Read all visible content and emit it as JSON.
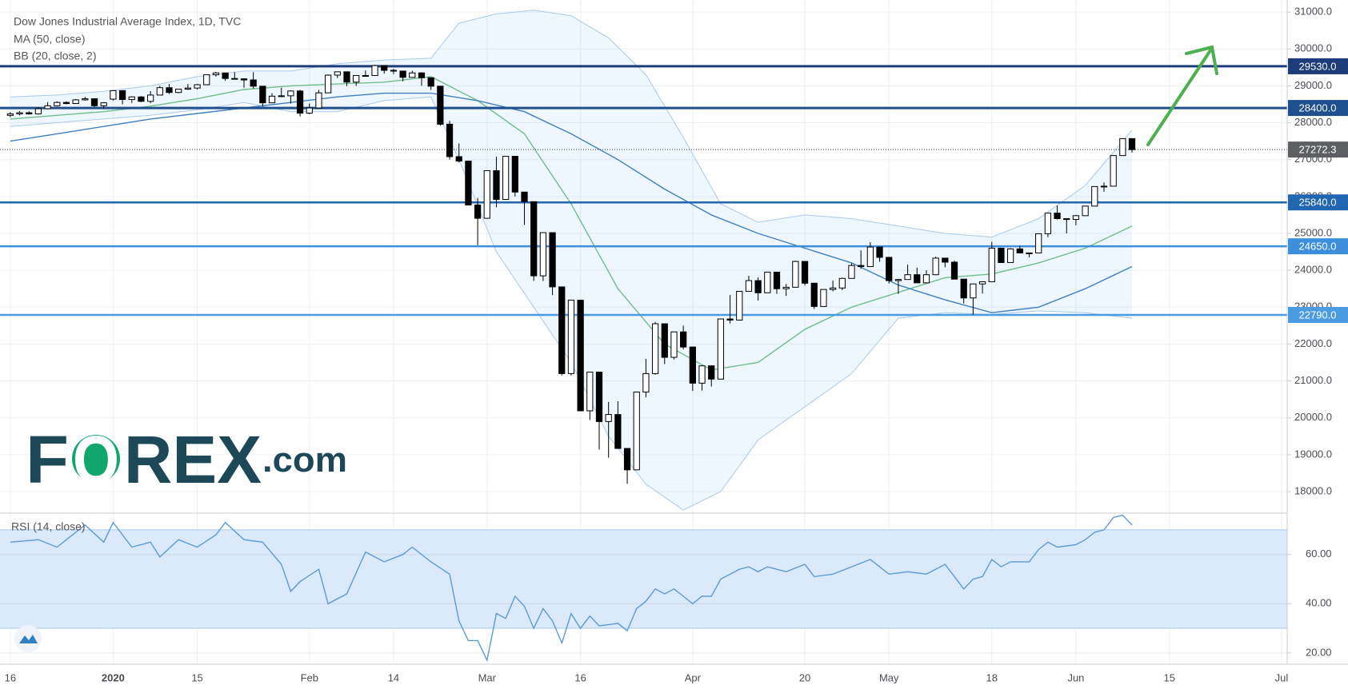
{
  "chart_data": {
    "type": "candlestick",
    "title": "Dow Jones Industrial Average Index, 1D, TVC",
    "indicators": [
      "MA (50, close)",
      "BB (20, close, 2)"
    ],
    "grid": true,
    "xlim": [
      -1.1,
      136.6
    ],
    "xticks": [
      {
        "value": 0,
        "label": "16"
      },
      {
        "value": 11,
        "label": "2020",
        "bold": true
      },
      {
        "value": 20,
        "label": "15"
      },
      {
        "value": 32,
        "label": "Feb"
      },
      {
        "value": 41,
        "label": "14"
      },
      {
        "value": 51,
        "label": "Mar"
      },
      {
        "value": 61,
        "label": "16"
      },
      {
        "value": 73,
        "label": "Apr"
      },
      {
        "value": 85,
        "label": "20"
      },
      {
        "value": 94,
        "label": "May"
      },
      {
        "value": 105,
        "label": "18"
      },
      {
        "value": 114,
        "label": "Jun"
      },
      {
        "value": 124,
        "label": "15"
      },
      {
        "value": 136,
        "label": "Jul"
      }
    ],
    "ylim": [
      17416,
      31327
    ],
    "yticks": [
      {
        "value": 18000,
        "label": "18000.0"
      },
      {
        "value": 19000,
        "label": "19000.0"
      },
      {
        "value": 20000,
        "label": "20000.0"
      },
      {
        "value": 21000,
        "label": "21000.0"
      },
      {
        "value": 22000,
        "label": "22000.0"
      },
      {
        "value": 23000,
        "label": "23000.0"
      },
      {
        "value": 24000,
        "label": "24000.0"
      },
      {
        "value": 25000,
        "label": "25000.0"
      },
      {
        "value": 26000,
        "label": "26000.0"
      },
      {
        "value": 27000,
        "label": "27000.0"
      },
      {
        "value": 28000,
        "label": "28000.0"
      },
      {
        "value": 29000,
        "label": "29000.0"
      },
      {
        "value": 30000,
        "label": "30000.0"
      },
      {
        "value": 31000,
        "label": "31000.0"
      }
    ],
    "candles": {
      "up_color": "#ffffff",
      "down_color": "#000000",
      "values": [
        [
          28200,
          28290,
          28150,
          28240
        ],
        [
          28240,
          28320,
          28200,
          28270
        ],
        [
          28270,
          28310,
          28220,
          28240
        ],
        [
          28240,
          28420,
          28220,
          28380
        ],
        [
          28380,
          28560,
          28360,
          28460
        ],
        [
          28460,
          28580,
          28440,
          28550
        ],
        [
          28550,
          28580,
          28500,
          28520
        ],
        [
          28520,
          28640,
          28510,
          28620
        ],
        [
          28620,
          28700,
          28600,
          28650
        ],
        [
          28650,
          28660,
          28420,
          28460
        ],
        [
          28460,
          28560,
          28380,
          28540
        ],
        [
          28640,
          28880,
          28600,
          28870
        ],
        [
          28870,
          28870,
          28500,
          28630
        ],
        [
          28630,
          28720,
          28540,
          28700
        ],
        [
          28700,
          28720,
          28560,
          28580
        ],
        [
          28580,
          28860,
          28530,
          28750
        ],
        [
          28750,
          29000,
          28740,
          28950
        ],
        [
          28950,
          29050,
          28780,
          28820
        ],
        [
          28820,
          28920,
          28800,
          28910
        ],
        [
          28910,
          29050,
          28890,
          28940
        ],
        [
          28940,
          29050,
          28900,
          29030
        ],
        [
          29030,
          29310,
          29030,
          29300
        ],
        [
          29300,
          29380,
          29250,
          29350
        ],
        [
          29350,
          29350,
          29140,
          29200
        ],
        [
          29200,
          29370,
          29180,
          29190
        ],
        [
          29190,
          29190,
          28950,
          29160
        ],
        [
          29160,
          29370,
          28930,
          28990
        ],
        [
          28990,
          28990,
          28440,
          28540
        ],
        [
          28540,
          28800,
          28530,
          28720
        ],
        [
          28720,
          28950,
          28700,
          28730
        ],
        [
          28730,
          28880,
          28520,
          28860
        ],
        [
          28860,
          28890,
          28170,
          28260
        ],
        [
          28260,
          28520,
          28230,
          28400
        ],
        [
          28400,
          28890,
          28400,
          28810
        ],
        [
          28810,
          29310,
          28810,
          29290
        ],
        [
          29290,
          29380,
          29210,
          29380
        ],
        [
          29380,
          29380,
          28990,
          29100
        ],
        [
          29100,
          29280,
          29000,
          29280
        ],
        [
          29280,
          29420,
          29260,
          29280
        ],
        [
          29280,
          29570,
          29280,
          29550
        ],
        [
          29550,
          29560,
          29330,
          29420
        ],
        [
          29420,
          29460,
          29320,
          29400
        ],
        [
          29400,
          29400,
          29120,
          29230
        ],
        [
          29230,
          29410,
          29230,
          29350
        ],
        [
          29350,
          29370,
          29000,
          29220
        ],
        [
          29220,
          29220,
          28890,
          28990
        ],
        [
          28990,
          28990,
          27920,
          27960
        ],
        [
          27960,
          28050,
          27000,
          27080
        ],
        [
          27080,
          27440,
          26920,
          26960
        ],
        [
          26960,
          26960,
          25770,
          25770
        ],
        [
          25770,
          25960,
          24680,
          25410
        ],
        [
          25410,
          26700,
          25400,
          26700
        ],
        [
          26700,
          27080,
          25710,
          25920
        ],
        [
          25920,
          27090,
          25920,
          27090
        ],
        [
          27090,
          27090,
          26000,
          26120
        ],
        [
          26120,
          26120,
          25230,
          25860
        ],
        [
          25860,
          25860,
          23710,
          23850
        ],
        [
          23850,
          25020,
          23710,
          25020
        ],
        [
          25020,
          25020,
          23330,
          23550
        ],
        [
          23550,
          23550,
          21150,
          21200
        ],
        [
          21200,
          23190,
          21150,
          23190
        ],
        [
          23190,
          23190,
          20190,
          20190
        ],
        [
          20190,
          21240,
          19940,
          21240
        ],
        [
          21240,
          21240,
          19140,
          19900
        ],
        [
          19900,
          20430,
          18920,
          20090
        ],
        [
          20090,
          20450,
          19160,
          19170
        ],
        [
          19170,
          19170,
          18210,
          18590
        ],
        [
          18590,
          20700,
          18590,
          20700
        ],
        [
          20700,
          21600,
          20560,
          21200
        ],
        [
          21200,
          22600,
          21170,
          22550
        ],
        [
          22550,
          22550,
          21460,
          21640
        ],
        [
          21640,
          22330,
          21580,
          22330
        ],
        [
          22330,
          22500,
          21860,
          21920
        ],
        [
          21920,
          21920,
          20730,
          20940
        ],
        [
          20940,
          21410,
          20740,
          21410
        ],
        [
          21410,
          21410,
          20850,
          21050
        ],
        [
          21050,
          22680,
          21050,
          22680
        ],
        [
          22680,
          23330,
          22560,
          22650
        ],
        [
          22650,
          23430,
          22650,
          23430
        ],
        [
          23430,
          23850,
          23430,
          23720
        ],
        [
          23720,
          23810,
          23180,
          23390
        ],
        [
          23390,
          23950,
          23390,
          23950
        ],
        [
          23950,
          23950,
          23360,
          23500
        ],
        [
          23500,
          23630,
          23310,
          23540
        ],
        [
          23540,
          24260,
          23540,
          24240
        ],
        [
          24240,
          24240,
          23590,
          23650
        ],
        [
          23650,
          23650,
          22950,
          23020
        ],
        [
          23020,
          23480,
          23020,
          23480
        ],
        [
          23480,
          23720,
          23430,
          23520
        ],
        [
          23520,
          23800,
          23460,
          23780
        ],
        [
          23780,
          24190,
          23780,
          24130
        ],
        [
          24130,
          24540,
          24040,
          24100
        ],
        [
          24100,
          24760,
          24100,
          24630
        ],
        [
          24630,
          24630,
          24230,
          24350
        ],
        [
          24350,
          24350,
          23640,
          23720
        ],
        [
          23720,
          23760,
          23360,
          23750
        ],
        [
          23750,
          24150,
          23750,
          23880
        ],
        [
          23880,
          24070,
          23650,
          23660
        ],
        [
          23660,
          24000,
          23660,
          23880
        ],
        [
          23880,
          24370,
          23880,
          24330
        ],
        [
          24330,
          24330,
          24080,
          24220
        ],
        [
          24220,
          24260,
          23760,
          23760
        ],
        [
          23760,
          23760,
          23100,
          23250
        ],
        [
          23250,
          23640,
          22790,
          23630
        ],
        [
          23630,
          23690,
          23370,
          23690
        ],
        [
          23690,
          24770,
          23690,
          24600
        ],
        [
          24600,
          24600,
          24200,
          24210
        ],
        [
          24210,
          24600,
          24210,
          24580
        ],
        [
          24580,
          24660,
          24470,
          24470
        ],
        [
          24470,
          24480,
          24350,
          24470
        ],
        [
          24470,
          25000,
          24470,
          24990
        ],
        [
          24990,
          25550,
          24900,
          25550
        ],
        [
          25550,
          25760,
          25380,
          25400
        ],
        [
          25400,
          25400,
          25000,
          25380
        ],
        [
          25380,
          25500,
          25220,
          25480
        ],
        [
          25480,
          25750,
          25480,
          25740
        ],
        [
          25740,
          26270,
          25740,
          26270
        ],
        [
          26270,
          26380,
          26130,
          26280
        ],
        [
          26280,
          27110,
          26280,
          27110
        ],
        [
          27110,
          27580,
          27110,
          27570
        ],
        [
          27570,
          27580,
          27190,
          27272
        ]
      ]
    },
    "bb_upper": {
      "color": "#a9c9ea",
      "x": [
        0,
        5,
        10,
        15,
        20,
        25,
        30,
        35,
        40,
        45,
        48,
        52,
        56,
        60,
        64,
        68,
        72,
        76,
        80,
        85,
        90,
        95,
        100,
        105,
        110,
        115,
        120
      ],
      "values": [
        28700,
        28750,
        28850,
        29000,
        29250,
        29400,
        29400,
        29600,
        29700,
        29750,
        30700,
        30950,
        31050,
        30900,
        30300,
        29300,
        27600,
        25800,
        25300,
        25500,
        25400,
        25200,
        25000,
        24900,
        25400,
        26300,
        27800
      ]
    },
    "bb_lower": {
      "color": "#a9c9ea",
      "x": [
        0,
        5,
        10,
        15,
        20,
        25,
        30,
        35,
        40,
        45,
        48,
        52,
        56,
        60,
        64,
        68,
        72,
        76,
        80,
        85,
        90,
        95,
        100,
        105,
        110,
        115,
        120
      ],
      "values": [
        27900,
        28000,
        28100,
        28200,
        28350,
        28550,
        28300,
        28300,
        28600,
        28700,
        27000,
        24500,
        23000,
        21500,
        19500,
        18200,
        17500,
        18000,
        19400,
        20300,
        21200,
        22700,
        22850,
        22800,
        22900,
        22850,
        22700
      ]
    },
    "bb_basis": {
      "color": "#6fbf8a",
      "x": [
        0,
        5,
        10,
        15,
        20,
        25,
        30,
        35,
        40,
        45,
        50,
        55,
        60,
        65,
        70,
        75,
        80,
        85,
        90,
        95,
        100,
        105,
        110,
        115,
        120
      ],
      "values": [
        28100,
        28200,
        28300,
        28450,
        28650,
        28900,
        29000,
        29050,
        29100,
        29250,
        28600,
        27700,
        25800,
        23500,
        22000,
        21300,
        21500,
        22400,
        23000,
        23400,
        23800,
        23900,
        24200,
        24600,
        25200
      ]
    },
    "ma50": {
      "color": "#3f7fc0",
      "x": [
        0,
        5,
        10,
        15,
        20,
        25,
        30,
        35,
        40,
        45,
        50,
        55,
        60,
        65,
        70,
        75,
        80,
        85,
        90,
        95,
        100,
        105,
        110,
        115,
        120
      ],
      "values": [
        27500,
        27700,
        27900,
        28100,
        28250,
        28400,
        28550,
        28700,
        28800,
        28800,
        28600,
        28300,
        27700,
        27000,
        26200,
        25500,
        25000,
        24600,
        24200,
        23600,
        23200,
        22850,
        23000,
        23500,
        24100
      ]
    },
    "levels": [
      {
        "value": 29530,
        "label": "29530.0",
        "color": "#1c3d7a"
      },
      {
        "value": 28400,
        "label": "28400.0",
        "color": "#1f4f8f"
      },
      {
        "value": 25840,
        "label": "25840.0",
        "color": "#2166b0"
      },
      {
        "value": 24650,
        "label": "24650.0",
        "color": "#3d8fdc"
      },
      {
        "value": 22790,
        "label": "22790.0",
        "color": "#4a9be0"
      }
    ],
    "last_price": {
      "value": 27272.3,
      "label": "27272.3",
      "color": "#5d5f63"
    },
    "rsi": {
      "title": "RSI (14, close)",
      "color": "#5b9bd5",
      "band": [
        30,
        70
      ],
      "ylim": [
        15.4,
        76.8
      ],
      "yticks": [
        {
          "value": 20,
          "label": "20.00"
        },
        {
          "value": 40,
          "label": "40.00"
        },
        {
          "value": 60,
          "label": "60.00"
        }
      ],
      "x": [
        0,
        3,
        5,
        8,
        10,
        11,
        13,
        15,
        16,
        18,
        20,
        22,
        23,
        25,
        27,
        29,
        30,
        31,
        33,
        34,
        36,
        38,
        40,
        42,
        43,
        45,
        47,
        48,
        49,
        50,
        51,
        52,
        53,
        54,
        55,
        56,
        57,
        58,
        59,
        60,
        61,
        62,
        63,
        65,
        66,
        67,
        68,
        69,
        70,
        71,
        72,
        73,
        74,
        75,
        76,
        78,
        79,
        80,
        81,
        83,
        85,
        86,
        88,
        90,
        92,
        94,
        96,
        98,
        100,
        101,
        102,
        103,
        104,
        105,
        106,
        107,
        109,
        110,
        111,
        112,
        114,
        115,
        116,
        117,
        118,
        119,
        120
      ],
      "values": [
        65,
        66,
        63,
        72,
        65,
        73,
        63,
        65,
        59,
        66,
        63,
        68,
        73,
        66,
        65,
        56,
        45,
        49,
        54,
        40,
        44,
        61,
        57,
        60,
        63,
        57,
        52,
        33,
        25,
        25,
        17,
        36,
        34,
        43,
        39,
        30,
        38,
        33,
        24,
        36,
        30,
        35,
        31,
        32,
        29,
        38,
        41,
        46,
        44,
        46,
        43,
        40,
        43,
        43,
        50,
        54,
        55,
        53,
        55,
        53,
        56,
        51,
        52,
        55,
        58,
        52,
        53,
        52,
        56,
        51,
        46,
        50,
        51,
        58,
        55,
        57,
        57,
        62,
        65,
        63,
        64,
        66,
        69,
        70,
        75,
        76,
        72
      ]
    },
    "logo": [
      "F",
      "O",
      "REX",
      ".com"
    ]
  }
}
